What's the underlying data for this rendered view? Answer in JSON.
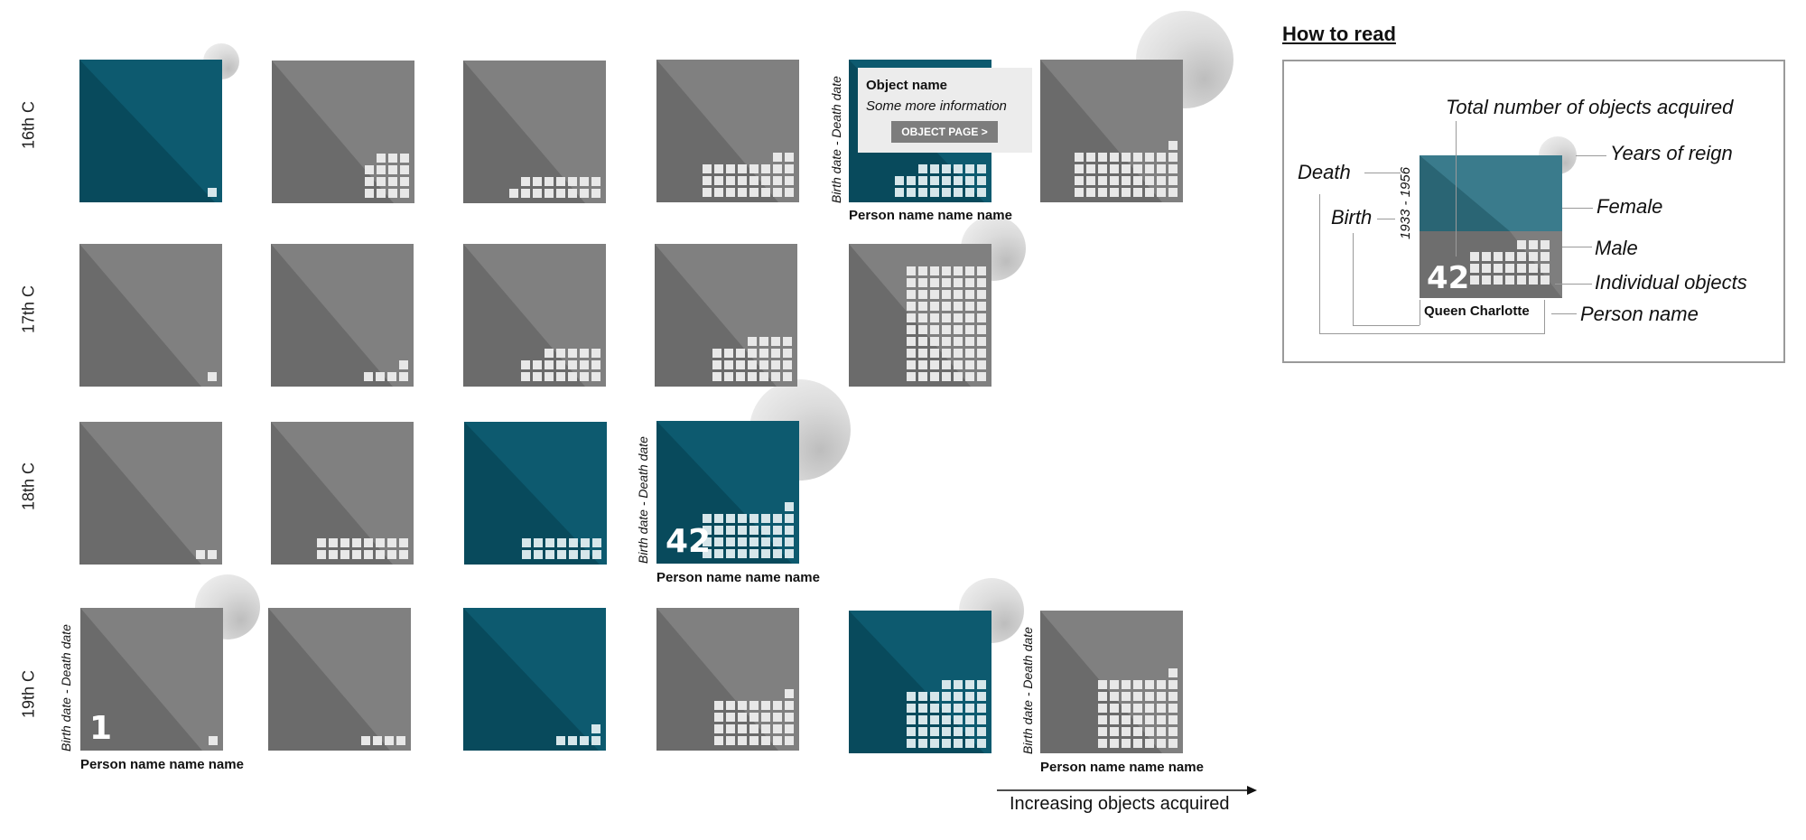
{
  "rows": [
    {
      "label": "16th C"
    },
    {
      "label": "17th C"
    },
    {
      "label": "18th C"
    },
    {
      "label": "19th C"
    }
  ],
  "tile_labels": {
    "person_name": "Person name name name",
    "dates": "Birth date - Death date"
  },
  "counts": {
    "r2c3": "42",
    "r3c0": "1"
  },
  "tooltip": {
    "title": "Object name",
    "subtitle": "Some more information",
    "button": "OBJECT PAGE >"
  },
  "axis": {
    "label": "Increasing objects acquired"
  },
  "legend": {
    "title": "How to read",
    "total": "Total number of objects acquired",
    "reign": "Years of reign",
    "death": "Death",
    "birth": "Birth",
    "female": "Female",
    "male": "Male",
    "individual": "Individual objects",
    "person_name": "Person name",
    "example_dates": "1933 - 1956",
    "example_count": "42",
    "example_name": "Queen Charlotte"
  },
  "colors": {
    "female": "#0d5a6f",
    "male": "#808080",
    "female_shade": "#084a5c",
    "male_shade": "#6b6b6b"
  }
}
